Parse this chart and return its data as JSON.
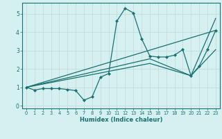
{
  "xlabel": "Humidex (Indice chaleur)",
  "background_color": "#d4f0f0",
  "grid_color": "#c8dede",
  "line_color": "#1a7070",
  "xlim": [
    -0.5,
    23.5
  ],
  "ylim": [
    -0.15,
    5.6
  ],
  "xticks": [
    0,
    1,
    2,
    3,
    4,
    5,
    6,
    7,
    8,
    9,
    10,
    11,
    12,
    13,
    14,
    15,
    16,
    17,
    18,
    19,
    20,
    21,
    22,
    23
  ],
  "yticks": [
    0,
    1,
    2,
    3,
    4,
    5
  ],
  "series_main": {
    "x": [
      0,
      1,
      2,
      3,
      4,
      5,
      6,
      7,
      8,
      9,
      10,
      11,
      12,
      13,
      14,
      15,
      16,
      17,
      18,
      19,
      20,
      21,
      22,
      23
    ],
    "y": [
      1.0,
      0.85,
      0.93,
      0.93,
      0.93,
      0.88,
      0.82,
      0.3,
      0.48,
      1.55,
      1.75,
      4.6,
      5.3,
      5.05,
      3.65,
      2.7,
      2.65,
      2.65,
      2.75,
      3.05,
      1.63,
      2.15,
      3.05,
      4.1
    ]
  },
  "series_lines": [
    {
      "x": [
        0,
        23
      ],
      "y": [
        1.0,
        4.1
      ]
    },
    {
      "x": [
        0,
        15,
        20,
        23
      ],
      "y": [
        1.0,
        2.55,
        1.63,
        4.75
      ]
    },
    {
      "x": [
        0,
        15,
        20,
        23
      ],
      "y": [
        1.0,
        2.3,
        1.63,
        3.05
      ]
    }
  ]
}
